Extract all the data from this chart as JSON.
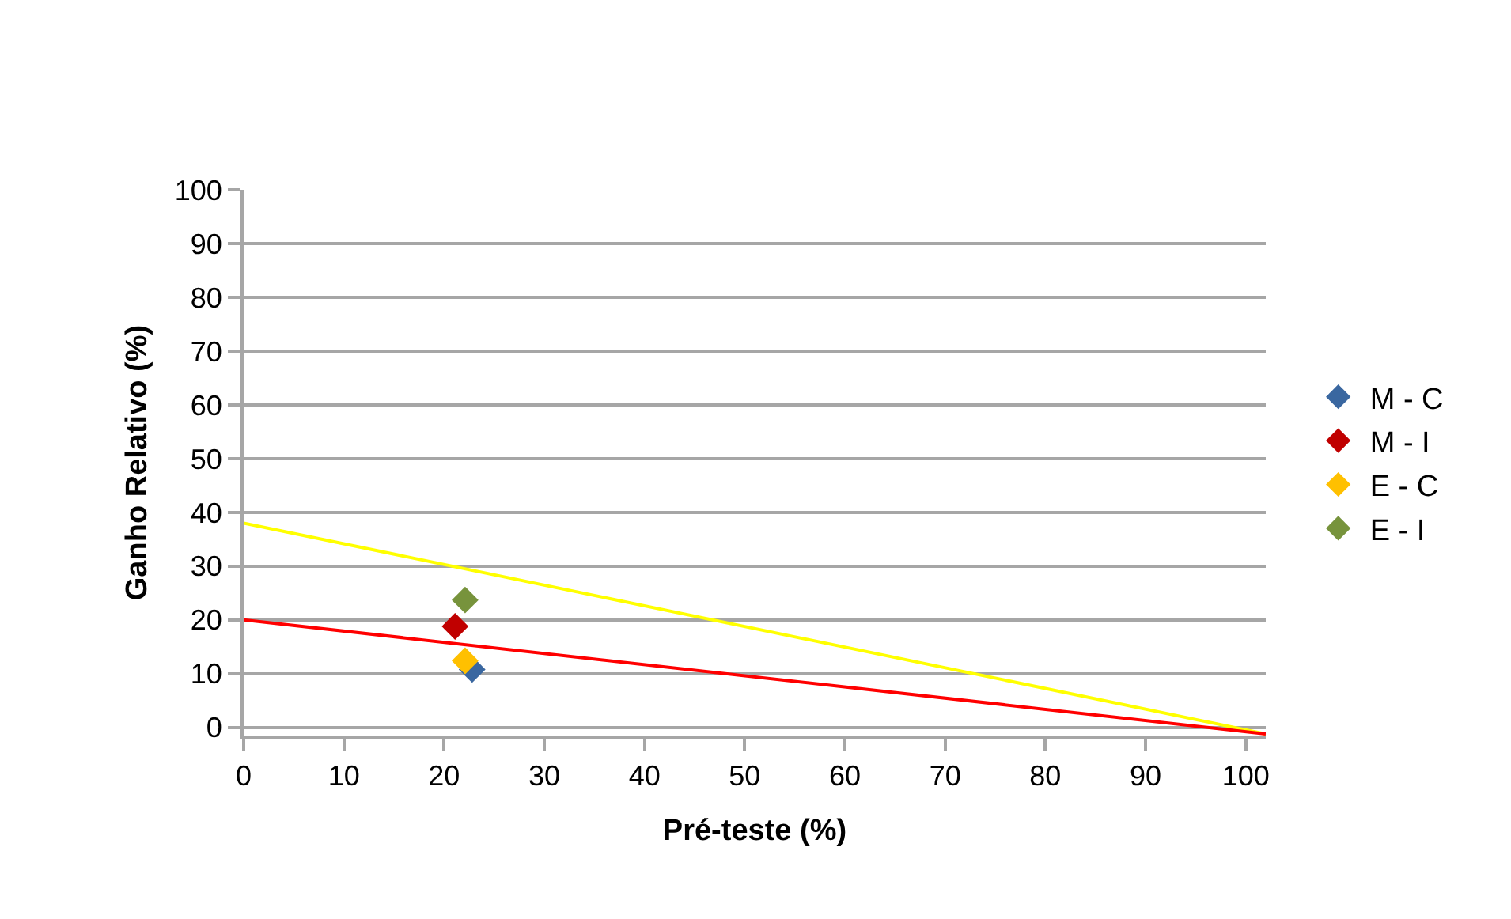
{
  "chart_data": {
    "type": "scatter",
    "xlabel": "Pré-teste (%)",
    "ylabel": "Ganho Relativo (%)",
    "xlim": [
      0,
      102
    ],
    "xticks": [
      0,
      10,
      20,
      30,
      40,
      50,
      60,
      70,
      80,
      90,
      100
    ],
    "ylim": [
      -1.5,
      100
    ],
    "yticks": [
      0,
      10,
      20,
      30,
      40,
      50,
      60,
      70,
      80,
      90,
      100
    ],
    "grid": "y",
    "legend": "right",
    "marker": "diamond",
    "series": [
      {
        "name": "M - C",
        "color": "#3a67a0",
        "x": [
          22.8
        ],
        "values": [
          10.8
        ]
      },
      {
        "name": "M - I",
        "color": "#c00000",
        "x": [
          21.1
        ],
        "values": [
          18.8
        ]
      },
      {
        "name": "E - C",
        "color": "#ffc000",
        "x": [
          22.1
        ],
        "values": [
          12.4
        ]
      },
      {
        "name": "E - I",
        "color": "#77933c",
        "x": [
          22.1
        ],
        "values": [
          23.7
        ]
      },
      {
        "type": "line",
        "marker": "none",
        "color": "#ff0000",
        "x": [
          0,
          102
        ],
        "values": [
          20,
          -1.2
        ]
      },
      {
        "type": "line",
        "marker": "none",
        "color": "#ffff00",
        "x": [
          0,
          102
        ],
        "values": [
          38,
          -1.2
        ]
      }
    ]
  }
}
